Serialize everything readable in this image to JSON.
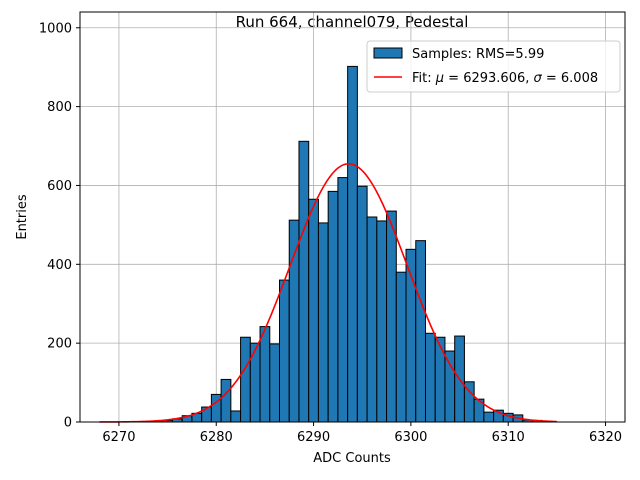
{
  "chart_data": {
    "type": "bar",
    "title": "Run 664, channel079, Pedestal",
    "xlabel": "ADC Counts",
    "ylabel": "Entries",
    "xlim": [
      6266,
      6322
    ],
    "ylim": [
      0,
      1040
    ],
    "xticks": [
      6270,
      6280,
      6290,
      6300,
      6310,
      6320
    ],
    "yticks": [
      0,
      200,
      400,
      600,
      800,
      1000
    ],
    "grid": true,
    "legend_position": "top-right",
    "bin_width": 1,
    "bar_color": "#1f77b4",
    "fit_color": "#ff0000",
    "histogram": {
      "name": "Samples: RMS=5.99",
      "bin_centers": [
        6274,
        6275,
        6276,
        6277,
        6278,
        6279,
        6280,
        6281,
        6282,
        6283,
        6284,
        6285,
        6286,
        6287,
        6288,
        6289,
        6290,
        6291,
        6292,
        6293,
        6294,
        6295,
        6296,
        6297,
        6298,
        6299,
        6300,
        6301,
        6302,
        6303,
        6304,
        6305,
        6306,
        6307,
        6308,
        6309,
        6310,
        6311,
        6312,
        6313,
        6314
      ],
      "counts": [
        2,
        4,
        8,
        16,
        22,
        38,
        70,
        108,
        28,
        215,
        200,
        242,
        198,
        360,
        512,
        712,
        565,
        505,
        585,
        620,
        902,
        598,
        520,
        510,
        535,
        380,
        438,
        460,
        225,
        215,
        180,
        218,
        102,
        58,
        25,
        30,
        22,
        18,
        5,
        4,
        1
      ]
    },
    "fit": {
      "name": "Fit: $\\mu$ = 6293.606, $\\sigma$ = 6.008",
      "legend_prefix": "Fit: ",
      "legend_mu_symbol": "μ",
      "legend_mu_text": " = 6293.606, ",
      "legend_sigma_symbol": "σ",
      "legend_sigma_text": " = 6.008",
      "mu": 6293.606,
      "sigma": 6.008,
      "amplitude": 655,
      "x_range": [
        6268,
        6315
      ]
    }
  }
}
